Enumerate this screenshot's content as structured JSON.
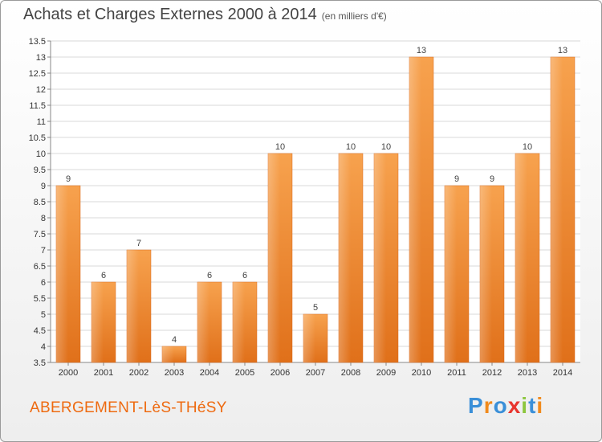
{
  "chart_data": {
    "type": "bar",
    "title": "Achats et Charges Externes 2000 à 2014",
    "unit_label": "(en milliers d'€)",
    "categories": [
      "2000",
      "2001",
      "2002",
      "2003",
      "2004",
      "2005",
      "2006",
      "2007",
      "2008",
      "2009",
      "2010",
      "2011",
      "2012",
      "2013",
      "2014"
    ],
    "values": [
      9,
      6,
      7,
      4,
      6,
      6,
      10,
      5,
      10,
      10,
      13,
      9,
      9,
      10,
      13
    ],
    "ylim": [
      3.5,
      13.5
    ],
    "yticks": [
      "3.5",
      "4",
      "4.5",
      "5",
      "5.5",
      "6",
      "6.5",
      "7",
      "7.5",
      "8",
      "8.5",
      "9",
      "9.5",
      "10",
      "10.5",
      "11",
      "11.5",
      "12",
      "12.5",
      "13",
      "13.5"
    ],
    "grid": true,
    "bar_color": "#f0892a"
  },
  "footer": {
    "place": "ABERGEMENT-LèS-THéSY",
    "logo_letters": [
      {
        "ch": "P",
        "color": "#3a8fd8"
      },
      {
        "ch": "r",
        "color": "#f08a1c"
      },
      {
        "ch": "o",
        "color": "#3a8fd8"
      },
      {
        "ch": "x",
        "color": "#e8352e"
      },
      {
        "ch": "i",
        "color": "#8cc63e"
      },
      {
        "ch": "t",
        "color": "#3a8fd8"
      },
      {
        "ch": "i",
        "color": "#f08a1c"
      }
    ]
  }
}
